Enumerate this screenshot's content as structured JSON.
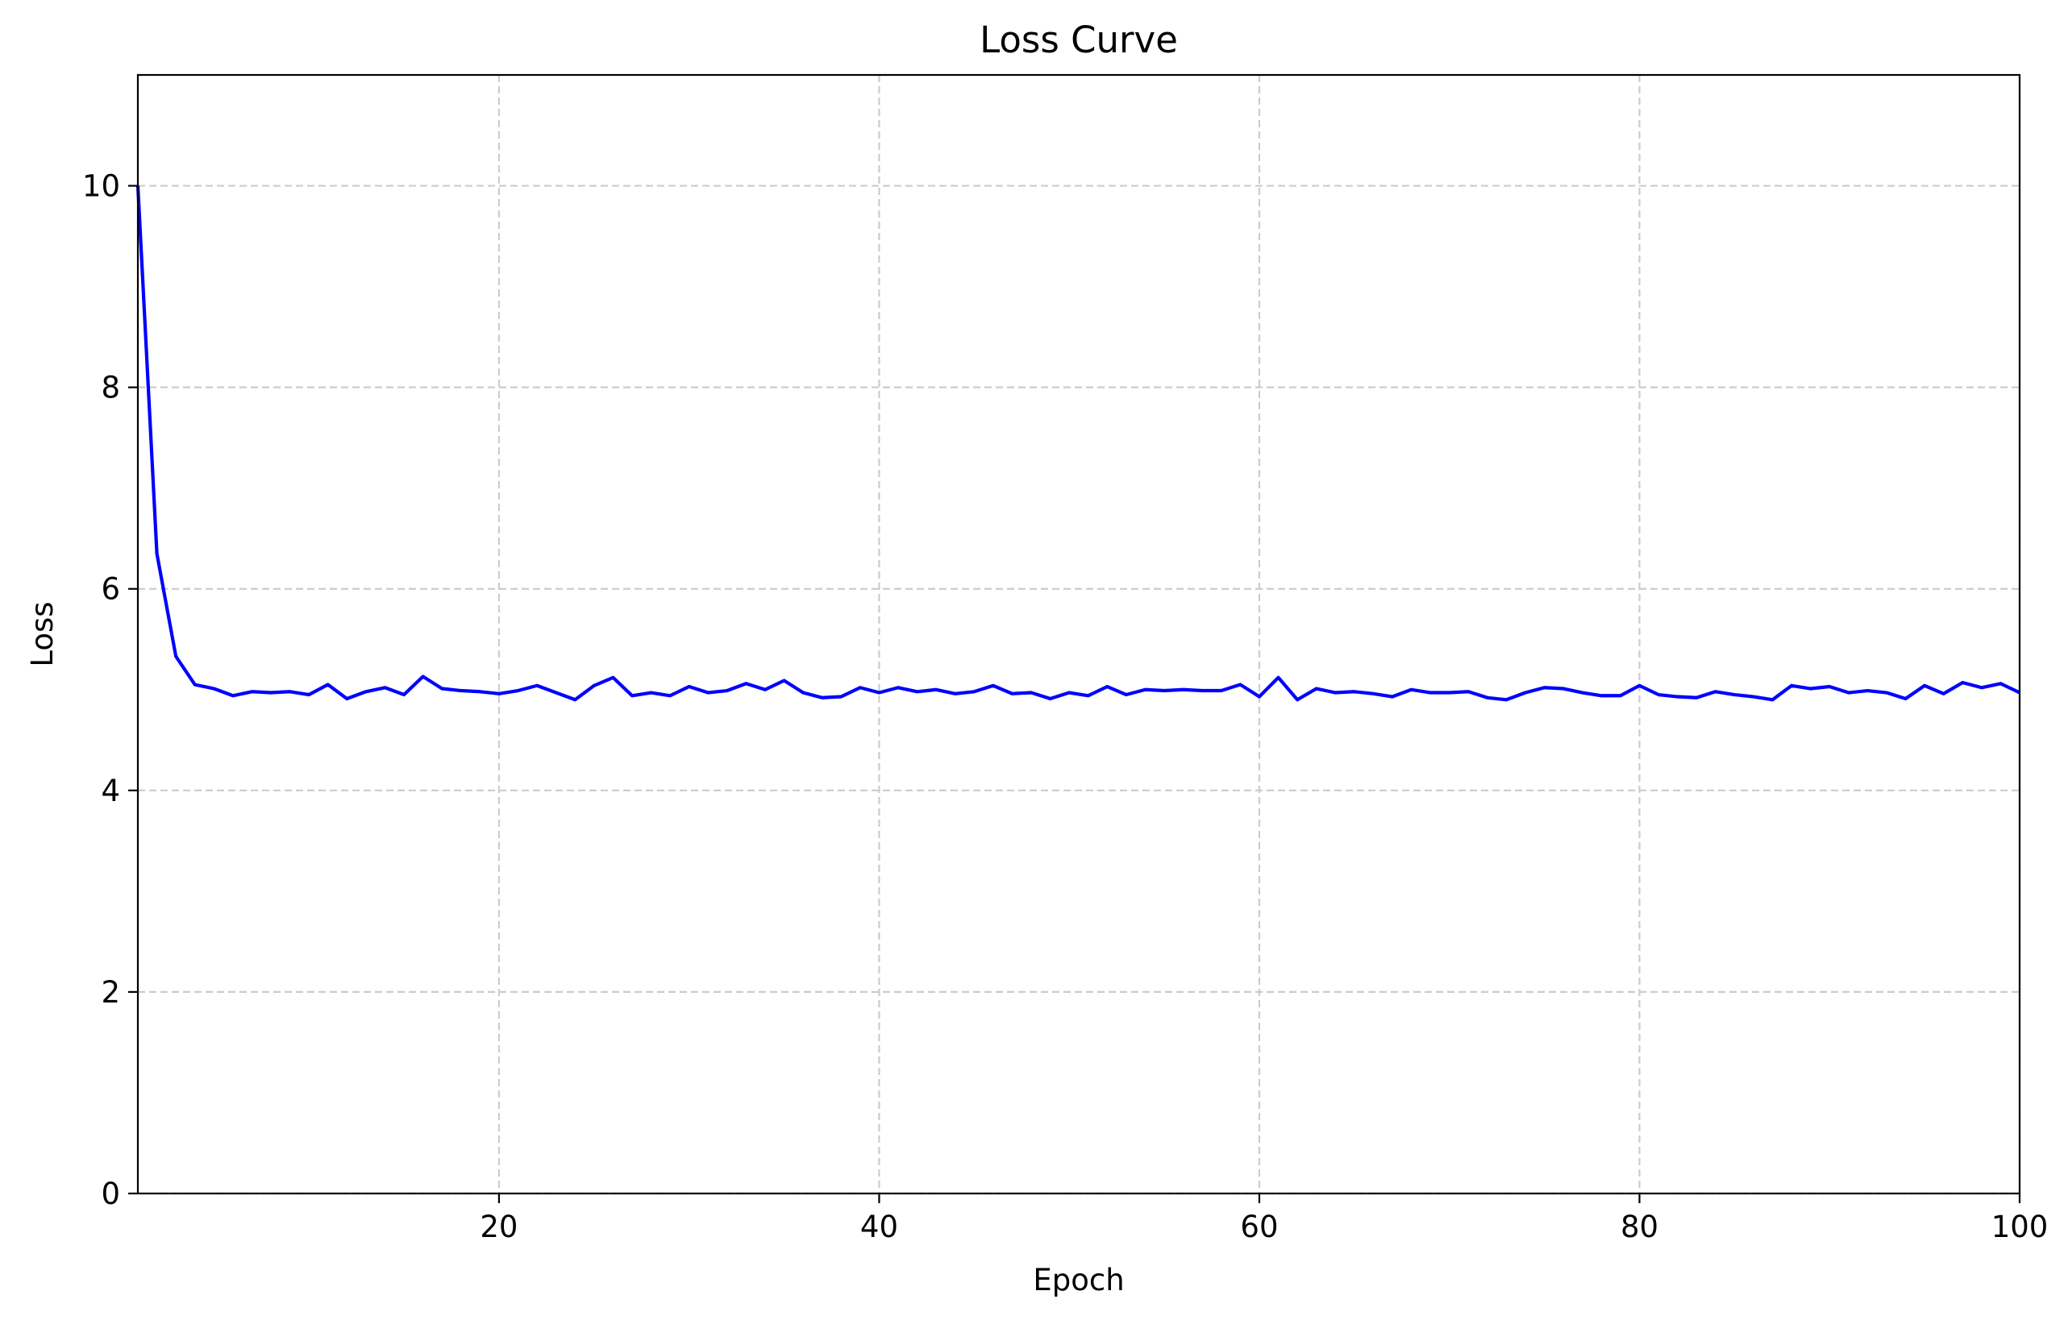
{
  "chart_data": {
    "type": "line",
    "title": "Loss Curve",
    "xlabel": "Epoch",
    "ylabel": "Loss",
    "xlim": [
      1,
      100
    ],
    "ylim": [
      0,
      11.1
    ],
    "xticks": [
      20,
      40,
      60,
      80,
      100
    ],
    "yticks": [
      0,
      2,
      4,
      6,
      8,
      10
    ],
    "grid": true,
    "series": [
      {
        "color": "#0000ff",
        "x": [
          1,
          2,
          3,
          4,
          5,
          6,
          7,
          8,
          9,
          10,
          11,
          12,
          13,
          14,
          15,
          16,
          17,
          18,
          19,
          20,
          21,
          22,
          23,
          24,
          25,
          26,
          27,
          28,
          29,
          30,
          31,
          32,
          33,
          34,
          35,
          36,
          37,
          38,
          39,
          40,
          41,
          42,
          43,
          44,
          45,
          46,
          47,
          48,
          49,
          50,
          51,
          52,
          53,
          54,
          55,
          56,
          57,
          58,
          59,
          60,
          61,
          62,
          63,
          64,
          65,
          66,
          67,
          68,
          69,
          70,
          71,
          72,
          73,
          74,
          75,
          76,
          77,
          78,
          79,
          80,
          81,
          82,
          83,
          84,
          85,
          86,
          87,
          88,
          89,
          90,
          91,
          92,
          93,
          94,
          95,
          96,
          97,
          98,
          99,
          100
        ],
        "y": [
          10.0,
          6.35,
          5.33,
          5.05,
          5.01,
          4.94,
          4.98,
          4.97,
          4.98,
          4.95,
          5.05,
          4.91,
          4.98,
          5.02,
          4.95,
          5.13,
          5.01,
          4.99,
          4.98,
          4.96,
          4.99,
          5.04,
          4.97,
          4.9,
          5.04,
          5.12,
          4.94,
          4.97,
          4.94,
          5.03,
          4.97,
          4.99,
          5.06,
          5.0,
          5.09,
          4.97,
          4.92,
          4.93,
          5.02,
          4.97,
          5.02,
          4.98,
          5.0,
          4.96,
          4.98,
          5.04,
          4.96,
          4.97,
          4.91,
          4.97,
          4.94,
          5.03,
          4.95,
          5.0,
          4.99,
          5.0,
          4.99,
          4.99,
          5.05,
          4.93,
          5.12,
          4.9,
          5.01,
          4.97,
          4.98,
          4.96,
          4.93,
          5.0,
          4.97,
          4.97,
          4.98,
          4.92,
          4.9,
          4.97,
          5.02,
          5.01,
          4.97,
          4.94,
          4.94,
          5.04,
          4.95,
          4.93,
          4.92,
          4.98,
          4.95,
          4.93,
          4.9,
          5.04,
          5.01,
          5.03,
          4.97,
          4.99,
          4.97,
          4.91,
          5.04,
          4.96,
          5.07,
          5.02,
          5.06,
          4.97
        ]
      }
    ]
  }
}
